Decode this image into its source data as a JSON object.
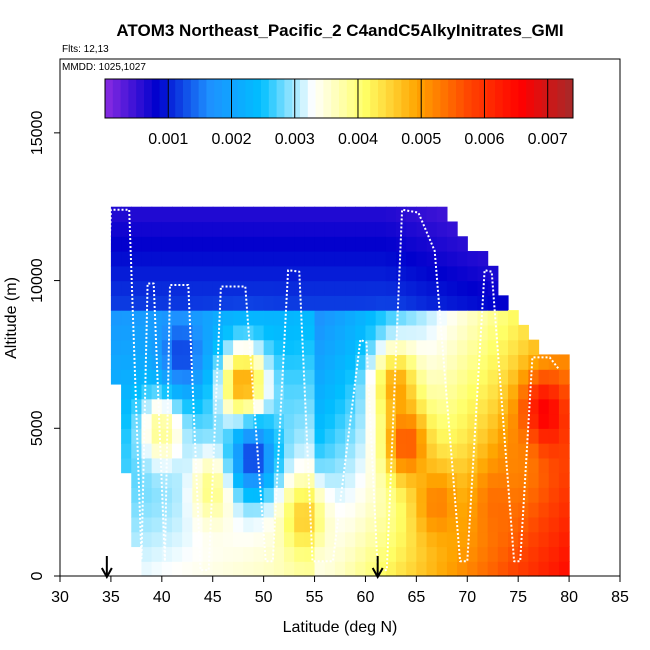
{
  "chart_data": {
    "type": "heatmap",
    "title": "ATOM3 Northeast_Pacific_2 C4andC5AlkyInitrates_GMI",
    "flights_text": "Flts: 12,13",
    "mmdd_text": "MMDD: 1025,1027",
    "xlabel": "Latitude (deg N)",
    "ylabel": "Altitude (m)",
    "xlim": [
      30,
      85
    ],
    "ylim": [
      0,
      17500
    ],
    "x_ticks": [
      "30",
      "35",
      "40",
      "45",
      "50",
      "55",
      "60",
      "65",
      "70",
      "75",
      "80",
      "85"
    ],
    "y_ticks": [
      "0",
      "5000",
      "10000",
      "15000"
    ],
    "colorbar": {
      "range": [
        0,
        0.0074
      ],
      "tick_values": [
        0.001,
        0.002,
        0.003,
        0.004,
        0.005,
        0.006,
        0.007
      ],
      "tick_labels": [
        "0.001",
        "0.002",
        "0.003",
        "0.004",
        "0.005",
        "0.006",
        "0.007"
      ],
      "colors": [
        "#8a2be2",
        "#0000cd",
        "#1e90ff",
        "#00bfff",
        "#ffffff",
        "#ffff66",
        "#ffa500",
        "#ff4500",
        "#ff0000",
        "#a52a2a"
      ]
    },
    "lat_bin_width": 1,
    "alt_bin_height": 500,
    "alt_extent": [
      {
        "lat": 35,
        "top": 12500
      },
      {
        "lat": 36,
        "top": 12500
      },
      {
        "lat": 37,
        "top": 12500
      },
      {
        "lat": 38,
        "top": 12500
      },
      {
        "lat": 39,
        "top": 12500
      },
      {
        "lat": 40,
        "top": 12500
      },
      {
        "lat": 45,
        "top": 12500
      },
      {
        "lat": 50,
        "top": 12500
      },
      {
        "lat": 55,
        "top": 12500
      },
      {
        "lat": 60,
        "top": 12500
      },
      {
        "lat": 65,
        "top": 12500
      },
      {
        "lat": 68,
        "top": 12000
      },
      {
        "lat": 70,
        "top": 11000
      },
      {
        "lat": 72,
        "top": 10500
      },
      {
        "lat": 75,
        "top": 8500
      },
      {
        "lat": 77,
        "top": 7500
      },
      {
        "lat": 80,
        "top": 7500
      }
    ],
    "anomalies": [
      {
        "lat": 48,
        "alt": 6500,
        "value": 0.0055
      },
      {
        "lat": 40,
        "alt": 5000,
        "value": 0.0042
      },
      {
        "lat": 45,
        "alt": 3000,
        "value": 0.0042
      },
      {
        "lat": 54,
        "alt": 2000,
        "value": 0.0048
      },
      {
        "lat": 63,
        "alt": 6500,
        "value": 0.0052
      },
      {
        "lat": 64,
        "alt": 4500,
        "value": 0.006
      },
      {
        "lat": 67,
        "alt": 2500,
        "value": 0.0054
      },
      {
        "lat": 73,
        "alt": 2500,
        "value": 0.0055
      },
      {
        "lat": 77.5,
        "alt": 5500,
        "value": 0.007
      },
      {
        "lat": 75,
        "alt": 4000,
        "value": 0.0052
      },
      {
        "lat": 49,
        "alt": 4000,
        "value": 0.0008
      },
      {
        "lat": 42,
        "alt": 7500,
        "value": 0.001
      }
    ],
    "flight_track": [
      [
        34.6,
        8700
      ],
      [
        35.0,
        12400
      ],
      [
        36.8,
        12400
      ],
      [
        38.0,
        600
      ],
      [
        38.6,
        9900
      ],
      [
        39.2,
        9900
      ],
      [
        40.3,
        500
      ],
      [
        40.8,
        9850
      ],
      [
        42.6,
        9850
      ],
      [
        43.8,
        200
      ],
      [
        44.6,
        200
      ],
      [
        45.8,
        9800
      ],
      [
        48.2,
        9800
      ],
      [
        50.2,
        500
      ],
      [
        50.9,
        500
      ],
      [
        52.4,
        10350
      ],
      [
        53.5,
        10300
      ],
      [
        54.8,
        500
      ],
      [
        55.3,
        500
      ],
      [
        56.8,
        500
      ],
      [
        59.5,
        8000
      ],
      [
        60.1,
        7900
      ],
      [
        61.2,
        200
      ],
      [
        62.1,
        200
      ],
      [
        63.6,
        12400
      ],
      [
        65.2,
        12300
      ],
      [
        66.8,
        11000
      ],
      [
        69.3,
        500
      ],
      [
        70.0,
        500
      ],
      [
        71.7,
        10350
      ],
      [
        72.4,
        10300
      ],
      [
        74.6,
        500
      ],
      [
        75.2,
        500
      ],
      [
        76.4,
        7400
      ],
      [
        78.1,
        7400
      ],
      [
        79.0,
        7000
      ]
    ],
    "arrow_lats": [
      34.6,
      61.2
    ]
  }
}
